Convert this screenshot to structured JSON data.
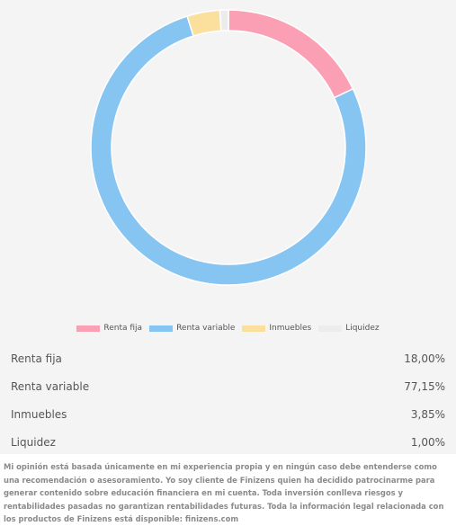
{
  "chart_data": {
    "type": "pie",
    "style": "donut",
    "categories": [
      "Renta fija",
      "Renta variable",
      "Inmuebles",
      "Liquidez"
    ],
    "values": [
      18.0,
      77.15,
      3.85,
      1.0
    ],
    "value_labels": [
      "18,00%",
      "77,15%",
      "3,85%",
      "1,00%"
    ],
    "colors": [
      "#fba0b4",
      "#86c4f1",
      "#fbe09d",
      "#ececec"
    ],
    "legend_position": "bottom",
    "title": ""
  },
  "disclaimer": "Mi opinión está basada únicamente en mi experiencia propia y en ningún caso debe entenderse como una recomendación o asesoramiento. Yo soy cliente de Finizens quien ha decidido patrocinarme para generar contenido sobre educación financiera en mi cuenta. Toda inversión conlleva riesgos y rentabilidades pasadas no garantizan rentabilidades futuras. Toda la información legal relacionada con los productos de Finizens está disponible: finizens.com"
}
